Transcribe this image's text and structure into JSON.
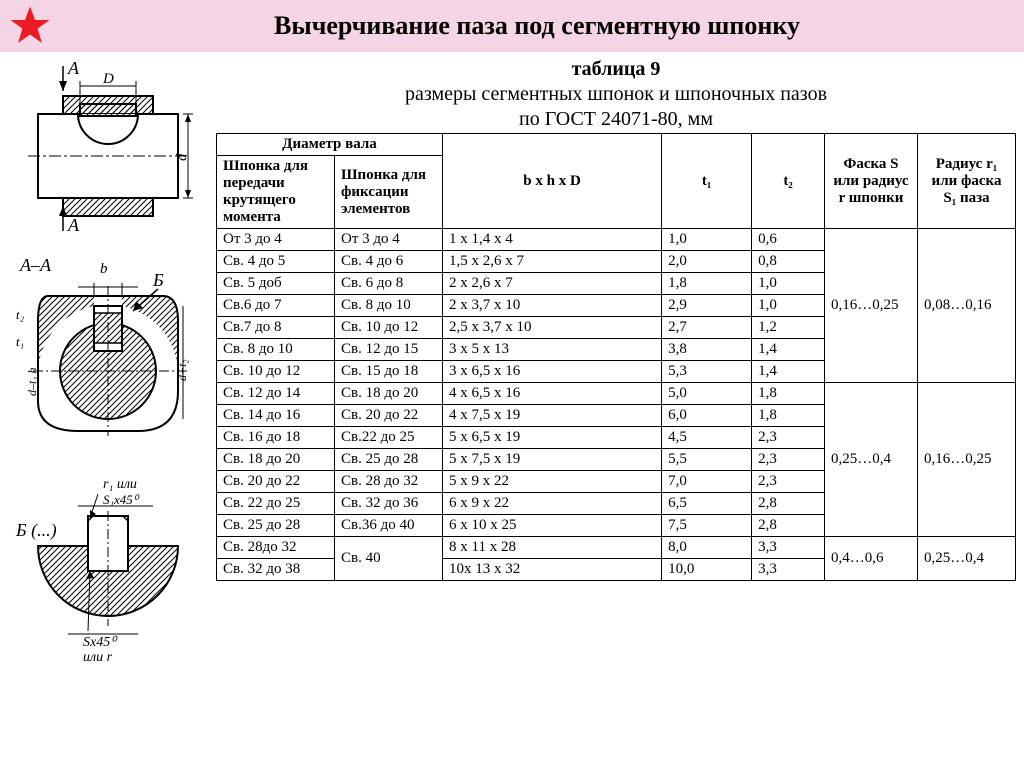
{
  "header": {
    "title": "Вычерчивание паза под сегментную шпонку"
  },
  "subtitle_lines": [
    "таблица 9",
    "размеры сегментных шпонок и шпоночных пазов",
    "по ГОСТ 24071-80, мм"
  ],
  "diagrams": {
    "d1_labels": {
      "A_top": "A",
      "A_bot": "A",
      "D": "D",
      "d": "d"
    },
    "d2_labels": {
      "AA": "A–A",
      "b": "b",
      "B": "Б",
      "t1": "t₁",
      "t2": "t₂",
      "dh": "d–t₁  h",
      "dt2": "d+t₂"
    },
    "d3_labels": {
      "B": "Б (...)",
      "r1": "r₁ или",
      "s1x45": "S₁x45⁰",
      "sx45": "Sx45⁰",
      "ili_r": "или r"
    }
  },
  "table": {
    "head": {
      "diam": "Диаметр вала",
      "col_a": "Шпонка для передачи крутящего момента",
      "col_b": "Шпонка для фикса­ции эле­ментов",
      "bhd": "b x h x D",
      "t1": "t₁",
      "t2": "t₂",
      "faska_s": "Фаска S или ради­ус r шпонки",
      "radius_r1": "Радиус r₁ или фаска S₁ паза"
    },
    "group1": {
      "faska": "0,16…0,25",
      "radius": "0,08…0,16",
      "rows": [
        [
          "От 3 до 4",
          "От 3 до 4",
          "1 x 1,4 x 4",
          "1,0",
          "0,6"
        ],
        [
          "Св. 4 до 5",
          "Св. 4 до 6",
          "1,5 x 2,6 x 7",
          "2,0",
          "0,8"
        ],
        [
          "Св. 5 доб",
          "Св. 6 до 8",
          "2 x 2,6 x 7",
          "1,8",
          "1,0"
        ],
        [
          "Св.6 до 7",
          "Св. 8 до 10",
          "2 x 3,7 x 10",
          "2,9",
          "1,0"
        ],
        [
          "Св.7 до 8",
          "Св. 10 до 12",
          "2,5 x 3,7 x 10",
          "2,7",
          "1,2"
        ],
        [
          "Св. 8 до 10",
          "Св. 12 до 15",
          "3 x 5 x 13",
          "3,8",
          "1,4"
        ],
        [
          "Св. 10 до 12",
          "Св. 15 до 18",
          "3 x 6,5 x 16",
          "5,3",
          "1,4"
        ]
      ]
    },
    "group2": {
      "faska": "0,25…0,4",
      "radius": "0,16…0,25",
      "rows": [
        [
          "Св. 12 до 14",
          "Св. 18 до 20",
          "4 x 6,5 x 16",
          "5,0",
          "1,8"
        ],
        [
          "Св. 14 до 16",
          "Св. 20 до 22",
          "4 x 7,5 x 19",
          "6,0",
          "1,8"
        ],
        [
          "Св. 16 до 18",
          "Св.22 до 25",
          "5 x 6,5 x 19",
          "4,5",
          "2,3"
        ],
        [
          "Св. 18 до 20",
          "Св. 25 до 28",
          "5 x 7,5 x 19",
          "5,5",
          "2,3"
        ],
        [
          "Св. 20 до 22",
          "Св. 28 до 32",
          "5 x 9 x 22",
          "7,0",
          "2,3"
        ],
        [
          "Св. 22 до 25",
          "Св. 32 до 36",
          "6 x 9 x 22",
          "6,5",
          "2,8"
        ],
        [
          "Св. 25 до 28",
          "Св.36 до 40",
          "6 x 10 x 25",
          "7,5",
          "2,8"
        ]
      ]
    },
    "group3": {
      "faska": "0,4…0,6",
      "radius": "0,25…0,4",
      "col_b": "Св. 40",
      "rows": [
        [
          "Св. 28до 32",
          "8 x 11 x 28",
          "8,0",
          "3,3"
        ],
        [
          "Св. 32 до 38",
          "10x 13 x 32",
          "10,0",
          "3,3"
        ]
      ]
    }
  }
}
